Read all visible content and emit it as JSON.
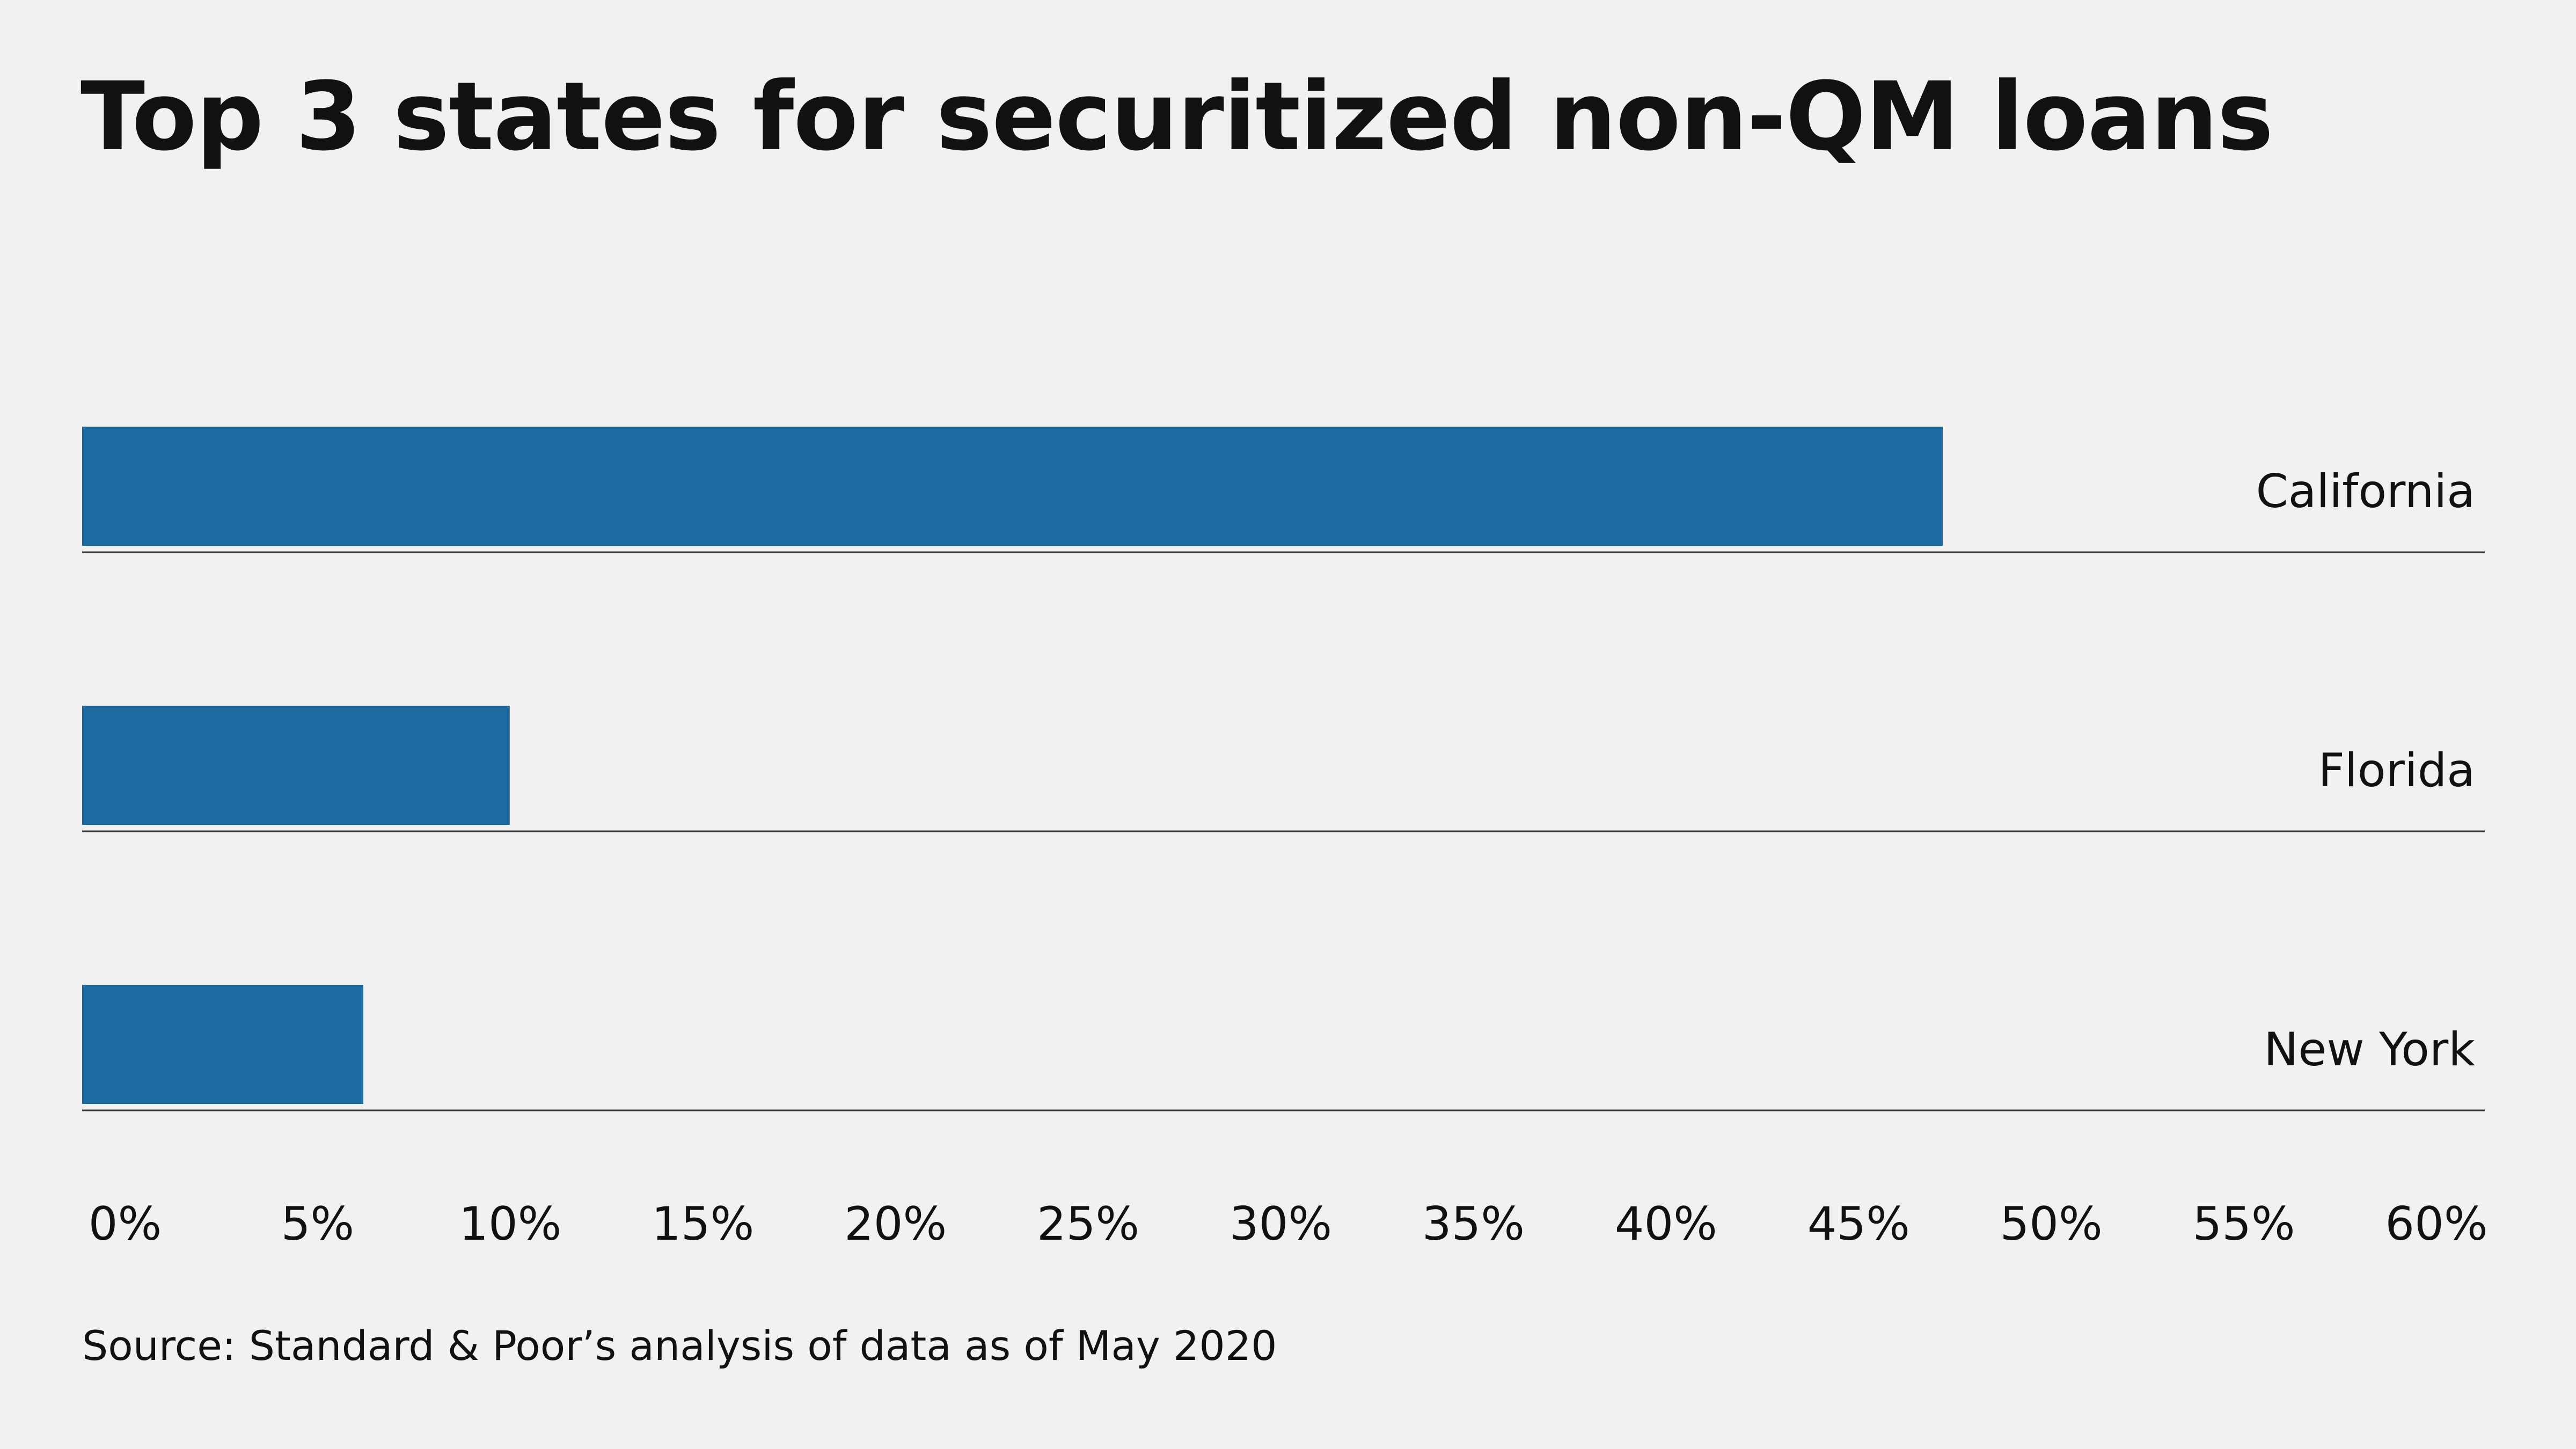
{
  "chart_data": {
    "type": "bar",
    "orientation": "horizontal",
    "title": "Top 3 states for securitized non-QM loans",
    "categories": [
      "California",
      "Florida",
      "New York"
    ],
    "values": [
      48.3,
      11.1,
      7.3
    ],
    "unit": "%",
    "xlim": [
      0,
      60
    ],
    "x_ticks": [
      "0%",
      "5%",
      "10%",
      "15%",
      "20%",
      "25%",
      "30%",
      "35%",
      "40%",
      "45%",
      "50%",
      "55%",
      "60%"
    ],
    "xlabel": "",
    "ylabel": "",
    "grid": false,
    "legend": "none",
    "category_label_position": "right",
    "bar_color": "#1c6aa0",
    "baseline_color": "#333333",
    "background": "#f0f1f0"
  },
  "footer": {
    "source": "Source: Standard & Poor’s analysis of data as of May 2020"
  }
}
